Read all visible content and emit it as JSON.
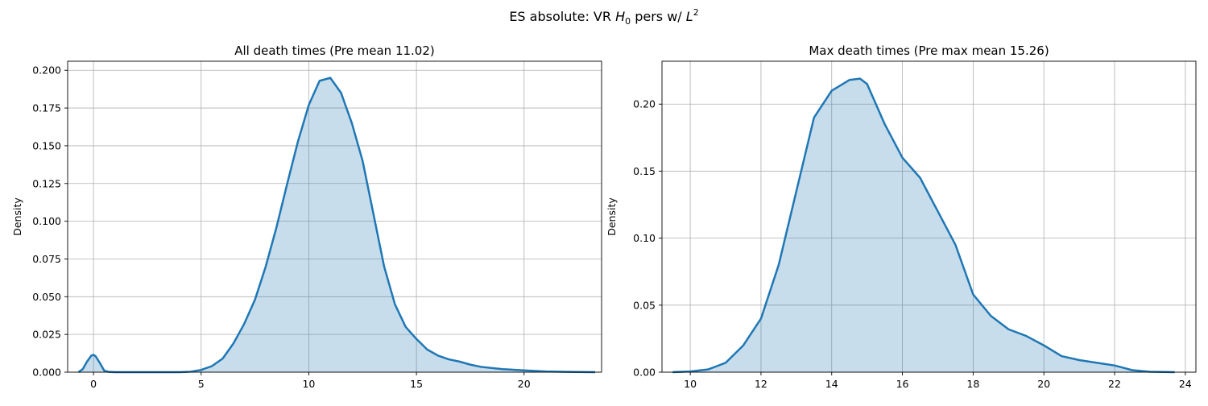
{
  "figure": {
    "title_prefix": "ES absolute: VR ",
    "title_h": "H",
    "title_h_sub": "0",
    "title_mid": " pers w/ ",
    "title_l": "L",
    "title_l_sup": "2"
  },
  "chart_data": [
    {
      "type": "area",
      "title": "All death times (Pre mean 11.02)",
      "xlabel": "",
      "ylabel": "Density",
      "xlim": [
        -1.2,
        23.6
      ],
      "ylim": [
        0,
        0.206
      ],
      "xticks": [
        0,
        5,
        10,
        15,
        20
      ],
      "yticks": [
        0.0,
        0.025,
        0.05,
        0.075,
        0.1,
        0.125,
        0.15,
        0.175,
        0.2
      ],
      "ytick_labels": [
        "0.000",
        "0.025",
        "0.050",
        "0.075",
        "0.100",
        "0.125",
        "0.150",
        "0.175",
        "0.200"
      ],
      "grid": true,
      "color": "#1f77b4",
      "x": [
        -0.7,
        -0.5,
        -0.3,
        -0.1,
        0.0,
        0.1,
        0.3,
        0.5,
        0.7,
        1.0,
        2.0,
        3.0,
        4.0,
        4.5,
        5.0,
        5.5,
        6.0,
        6.5,
        7.0,
        7.5,
        8.0,
        8.5,
        9.0,
        9.5,
        10.0,
        10.5,
        11.0,
        11.5,
        12.0,
        12.5,
        13.0,
        13.5,
        14.0,
        14.5,
        15.0,
        15.5,
        16.0,
        16.5,
        17.0,
        17.5,
        18.0,
        19.0,
        20.0,
        21.0,
        22.0,
        23.3
      ],
      "y": [
        0.0,
        0.002,
        0.007,
        0.011,
        0.0115,
        0.0105,
        0.006,
        0.001,
        0.0002,
        0.0,
        0.0,
        0.0,
        0.0,
        0.0003,
        0.0015,
        0.004,
        0.009,
        0.019,
        0.032,
        0.048,
        0.07,
        0.096,
        0.125,
        0.153,
        0.177,
        0.193,
        0.195,
        0.185,
        0.165,
        0.14,
        0.105,
        0.07,
        0.045,
        0.03,
        0.022,
        0.015,
        0.011,
        0.0085,
        0.007,
        0.005,
        0.0035,
        0.002,
        0.0012,
        0.0005,
        0.0002,
        0.0
      ]
    },
    {
      "type": "area",
      "title": "Max death times (Pre max mean 15.26)",
      "xlabel": "",
      "ylabel": "Density",
      "xlim": [
        9.2,
        24.3
      ],
      "ylim": [
        0,
        0.232
      ],
      "xticks": [
        10,
        12,
        14,
        16,
        18,
        20,
        22,
        24
      ],
      "yticks": [
        0.0,
        0.05,
        0.1,
        0.15,
        0.2
      ],
      "ytick_labels": [
        "0.00",
        "0.05",
        "0.10",
        "0.15",
        "0.20"
      ],
      "grid": true,
      "color": "#1f77b4",
      "x": [
        9.5,
        10.0,
        10.5,
        11.0,
        11.5,
        12.0,
        12.5,
        13.0,
        13.5,
        14.0,
        14.5,
        14.8,
        15.0,
        15.5,
        16.0,
        16.5,
        17.0,
        17.5,
        18.0,
        18.5,
        19.0,
        19.5,
        20.0,
        20.5,
        21.0,
        21.5,
        22.0,
        22.5,
        23.0,
        23.7
      ],
      "y": [
        0.0,
        0.0005,
        0.002,
        0.007,
        0.02,
        0.04,
        0.08,
        0.135,
        0.19,
        0.21,
        0.218,
        0.219,
        0.215,
        0.185,
        0.16,
        0.145,
        0.12,
        0.095,
        0.058,
        0.042,
        0.032,
        0.027,
        0.02,
        0.012,
        0.009,
        0.007,
        0.005,
        0.0015,
        0.0003,
        0.0
      ]
    }
  ]
}
